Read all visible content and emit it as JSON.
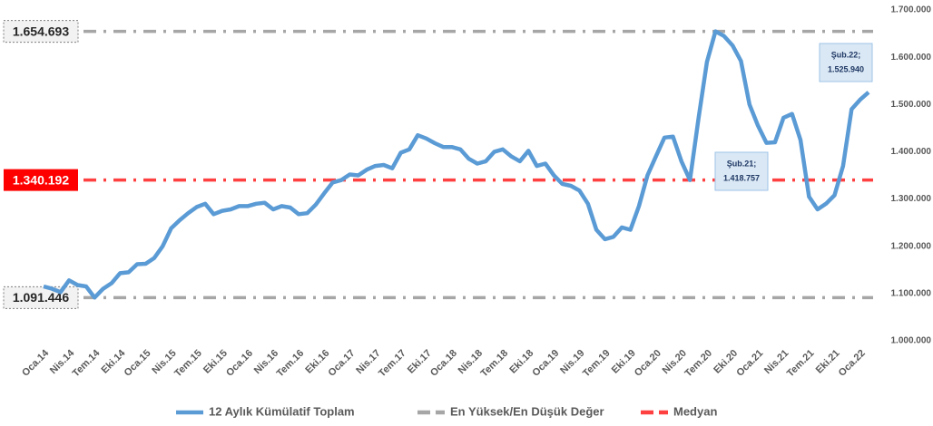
{
  "chart_data": {
    "type": "line",
    "categories": [
      "Oca.14",
      null,
      null,
      "Nis.14",
      null,
      null,
      "Tem.14",
      null,
      null,
      "Eki.14",
      null,
      null,
      "Oca.15",
      null,
      null,
      "Nis.15",
      null,
      null,
      "Tem.15",
      null,
      null,
      "Eki.15",
      null,
      null,
      "Oca.16",
      null,
      null,
      "Nis.16",
      null,
      null,
      "Tem.16",
      null,
      null,
      "Eki.16",
      null,
      null,
      "Oca.17",
      null,
      null,
      "Nis.17",
      null,
      null,
      "Tem.17",
      null,
      null,
      "Eki.17",
      null,
      null,
      "Oca.18",
      null,
      null,
      "Nis.18",
      null,
      null,
      "Tem.18",
      null,
      null,
      "Eki.18",
      null,
      null,
      "Oca.19",
      null,
      null,
      "Nis.19",
      null,
      null,
      "Tem.19",
      null,
      null,
      "Eki.19",
      null,
      null,
      "Oca.20",
      null,
      null,
      "Nis.20",
      null,
      null,
      "Tem.20",
      null,
      null,
      "Eki.20",
      null,
      null,
      "Oca.21",
      null,
      null,
      "Nis.21",
      null,
      null,
      "Tem.21",
      null,
      null,
      "Eki.21",
      null,
      null,
      "Oca.22",
      null
    ],
    "series": [
      {
        "name": "12 Aylık Kümülatif Toplam",
        "color": "#5b9bd5",
        "values": [
          1115000,
          1110000,
          1103000,
          1128000,
          1118000,
          1115000,
          1091446,
          1110000,
          1122000,
          1143000,
          1145000,
          1162000,
          1163000,
          1175000,
          1200000,
          1238000,
          1255000,
          1270000,
          1283000,
          1290000,
          1268000,
          1275000,
          1278000,
          1285000,
          1285000,
          1290000,
          1292000,
          1278000,
          1285000,
          1282000,
          1268000,
          1270000,
          1288000,
          1312000,
          1335000,
          1340000,
          1352000,
          1350000,
          1362000,
          1370000,
          1372000,
          1365000,
          1398000,
          1405000,
          1435000,
          1428000,
          1418000,
          1410000,
          1410000,
          1405000,
          1385000,
          1375000,
          1380000,
          1400000,
          1405000,
          1390000,
          1380000,
          1402000,
          1370000,
          1375000,
          1350000,
          1332000,
          1328000,
          1318000,
          1290000,
          1235000,
          1215000,
          1220000,
          1240000,
          1235000,
          1285000,
          1350000,
          1390000,
          1430000,
          1432000,
          1380000,
          1340000,
          1470000,
          1590000,
          1654693,
          1645000,
          1625000,
          1592000,
          1500000,
          1455000,
          1418757,
          1420000,
          1472000,
          1480000,
          1425000,
          1305000,
          1278000,
          1290000,
          1308000,
          1370000,
          1490000,
          1510000,
          1525940
        ]
      }
    ],
    "reference_lines": [
      {
        "name": "En Yüksek/En Düşük Değer",
        "color": "#a6a6a6",
        "value": 1654693,
        "label": "1.654.693"
      },
      {
        "name": "Medyan",
        "color": "#ff4040",
        "value": 1340192,
        "label": "1.340.192"
      },
      {
        "name": "En Yüksek/En Düşük Değer",
        "color": "#a6a6a6",
        "value": 1091446,
        "label": "1.091.446"
      }
    ],
    "annotations": [
      {
        "lines": [
          "Şub.21;",
          "1.418.757"
        ]
      },
      {
        "lines": [
          "Şub.22;",
          "1.525.940"
        ]
      }
    ],
    "ylim": [
      1000000,
      1700000
    ],
    "yticks": [
      {
        "value": 1000000,
        "label": "1.000.000"
      },
      {
        "value": 1100000,
        "label": "1.100.000"
      },
      {
        "value": 1200000,
        "label": "1.200.000"
      },
      {
        "value": 1300000,
        "label": "1.300.000"
      },
      {
        "value": 1400000,
        "label": "1.400.000"
      },
      {
        "value": 1500000,
        "label": "1.500.000"
      },
      {
        "value": 1600000,
        "label": "1.600.000"
      },
      {
        "value": 1700000,
        "label": "1.700.000"
      }
    ],
    "grid": false,
    "legend": "bottom"
  }
}
